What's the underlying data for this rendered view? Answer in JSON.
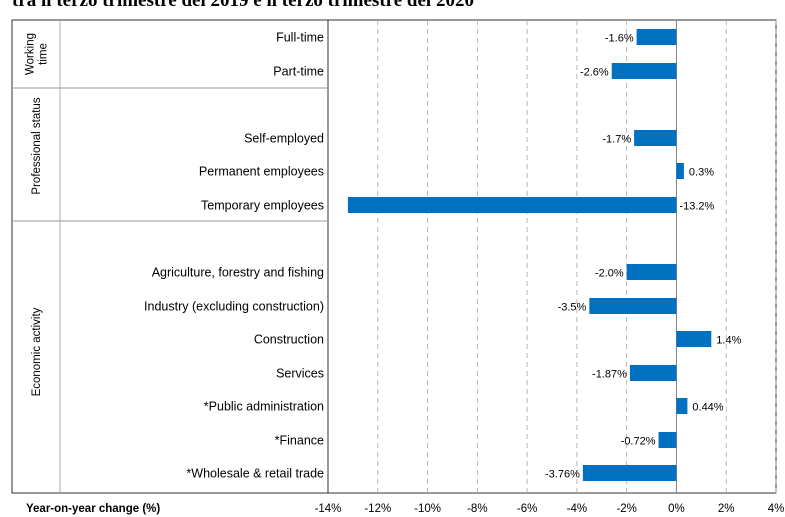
{
  "page": {
    "title": "tra il terzo trimestre del 2019 e il terzo trimestre del 2020"
  },
  "chart_data": {
    "type": "bar",
    "orientation": "horizontal",
    "xlabel": "Year-on-year change (%)",
    "xlim": [
      -14,
      4
    ],
    "xticks": [
      -14,
      -12,
      -10,
      -8,
      -6,
      -4,
      -2,
      0,
      2,
      4
    ],
    "xtick_labels": [
      "-14%",
      "-12%",
      "-10%",
      "-8%",
      "-6%",
      "-4%",
      "-2%",
      "0%",
      "2%",
      "4%"
    ],
    "grid": "vertical dashed",
    "color": "#0070C0",
    "groups": [
      {
        "name": "Working time",
        "name_lines": [
          "Working",
          "time"
        ],
        "items": [
          {
            "label": "Full-time",
            "value": -1.6,
            "value_label": "-1.6%"
          },
          {
            "label": "Part-time",
            "value": -2.6,
            "value_label": "-2.6%"
          }
        ]
      },
      {
        "name": "Professional status",
        "name_lines": [
          "Professional status"
        ],
        "items": [
          {
            "label": "Self-employed",
            "value": -1.7,
            "value_label": "-1.7%"
          },
          {
            "label": "Permanent employees",
            "value": 0.3,
            "value_label": "0.3%"
          },
          {
            "label": "Temporary employees",
            "value": -13.2,
            "value_label": "-13.2%"
          }
        ]
      },
      {
        "name": "Economic activity",
        "name_lines": [
          "Economic activity"
        ],
        "items": [
          {
            "label": "Agriculture, forestry and fishing",
            "value": -2.0,
            "value_label": "-2.0%"
          },
          {
            "label": "Industry (excluding construction)",
            "value": -3.5,
            "value_label": "-3.5%"
          },
          {
            "label": "Construction",
            "value": 1.4,
            "value_label": "1.4%"
          },
          {
            "label": "Services",
            "value": -1.87,
            "value_label": "-1.87%"
          },
          {
            "label": "*Public administration",
            "value": 0.44,
            "value_label": "0.44%"
          },
          {
            "label": "*Finance",
            "value": -0.72,
            "value_label": "-0.72%"
          },
          {
            "label": "*Wholesale & retail trade",
            "value": -3.76,
            "value_label": "-3.76%"
          }
        ]
      }
    ]
  }
}
